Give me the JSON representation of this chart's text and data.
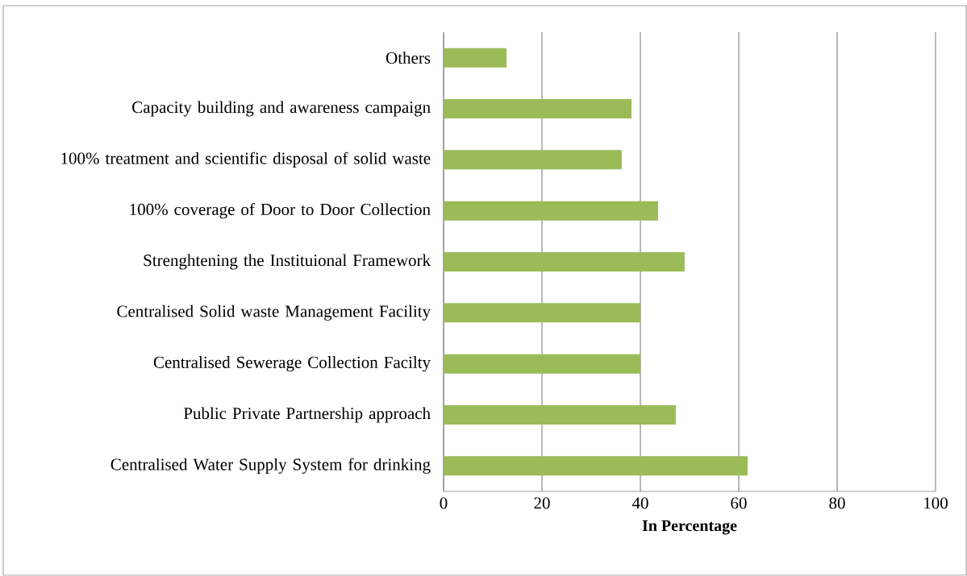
{
  "chart_data": {
    "type": "bar",
    "orientation": "horizontal",
    "categories": [
      "Others",
      "Capacity building and awareness campaign",
      "100% treatment and scientific disposal of solid waste",
      "100% coverage of Door to Door Collection",
      "Strenghtening the Instituional Framework",
      "Centralised Solid waste Management Facility",
      "Centralised Sewerage Collection Facilty",
      "Public Private Partnership approach",
      "Centralised Water Supply System  for drinking"
    ],
    "values": [
      12.8,
      38.2,
      36.2,
      43.6,
      49,
      40,
      40,
      47.2,
      61.8
    ],
    "color": "#9bbb59",
    "xlabel": "In Percentage",
    "xlim": [
      0,
      100
    ],
    "xticks": [
      0,
      20,
      40,
      60,
      80,
      100
    ],
    "grid": "x"
  }
}
